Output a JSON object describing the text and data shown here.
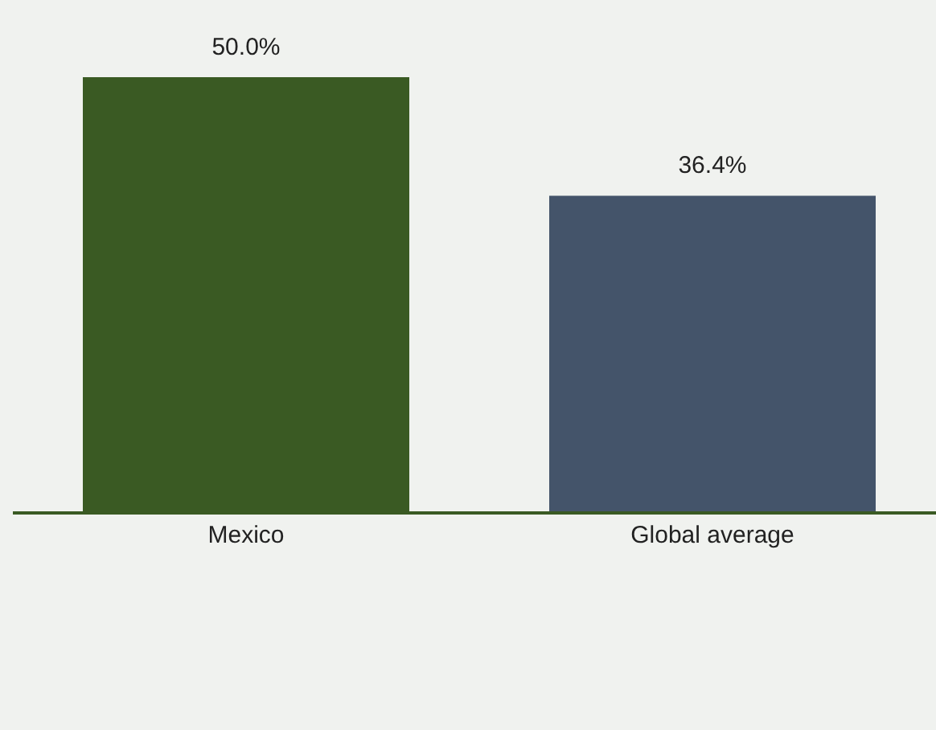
{
  "chart_data": {
    "type": "bar",
    "categories": [
      "Mexico",
      "Global average"
    ],
    "values": [
      50.0,
      36.4
    ],
    "colors": [
      "#3a5a23",
      "#44546a"
    ],
    "value_labels": [
      "50.0%",
      "36.4%"
    ],
    "grid": false
  }
}
